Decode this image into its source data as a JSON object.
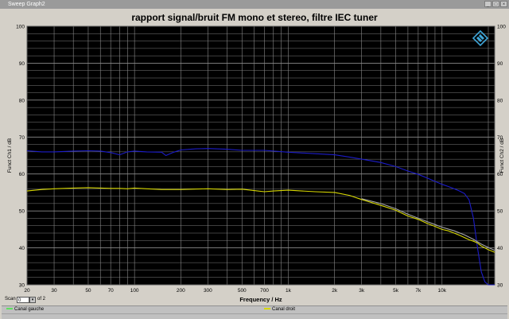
{
  "window": {
    "title": "Sweep Graph2",
    "buttons": [
      "_",
      "□",
      "×"
    ]
  },
  "chart_data": {
    "type": "line",
    "title": "rapport signal/bruit FM mono et stereo,  filtre IEC tuner",
    "xlabel": "Frequency / Hz",
    "ylabel_left": "Funct Ch1 / dB",
    "ylabel_right": "Funct Ch2 / dB",
    "xscale": "log",
    "xlim": [
      20,
      22000
    ],
    "ylim": [
      30,
      100
    ],
    "grid": true,
    "background": "#000000",
    "grid_color": "#8a8a8a",
    "yticks": [
      "30",
      "40",
      "50",
      "60",
      "70",
      "80",
      "90",
      "100"
    ],
    "xticks": [
      {
        "v": 20,
        "label": "20"
      },
      {
        "v": 30,
        "label": "30"
      },
      {
        "v": 50,
        "label": "50"
      },
      {
        "v": 70,
        "label": "70"
      },
      {
        "v": 100,
        "label": "100"
      },
      {
        "v": 200,
        "label": "200"
      },
      {
        "v": 300,
        "label": "300"
      },
      {
        "v": 500,
        "label": "500"
      },
      {
        "v": 700,
        "label": "700"
      },
      {
        "v": 1000,
        "label": "1k"
      },
      {
        "v": 2000,
        "label": "2k"
      },
      {
        "v": 3000,
        "label": "3k"
      },
      {
        "v": 5000,
        "label": "5k"
      },
      {
        "v": 7000,
        "label": "7k"
      },
      {
        "v": 10000,
        "label": "10k"
      }
    ],
    "series": [
      {
        "color": "#1c1cc8",
        "x": [
          20,
          25,
          30,
          40,
          50,
          60,
          70,
          80,
          90,
          100,
          120,
          150,
          160,
          180,
          200,
          250,
          300,
          400,
          500,
          700,
          1000,
          1500,
          2000,
          2500,
          3000,
          4000,
          5000,
          6000,
          7000,
          8000,
          9000,
          10000,
          11000,
          12000,
          13000,
          14000,
          15000,
          16000,
          17000,
          18000,
          19000,
          20000,
          22000
        ],
        "y": [
          66.3,
          66.0,
          66.0,
          66.2,
          66.3,
          66.2,
          65.8,
          65.2,
          66.0,
          66.2,
          66.0,
          65.9,
          65.0,
          65.9,
          66.5,
          66.8,
          66.9,
          66.7,
          66.4,
          66.4,
          65.9,
          65.5,
          65.2,
          64.6,
          64.0,
          63.1,
          62.0,
          60.8,
          59.9,
          58.9,
          58.0,
          57.2,
          56.6,
          56.0,
          55.4,
          54.7,
          53.0,
          48.0,
          40.0,
          33.5,
          30.8,
          30.0,
          30.0
        ]
      },
      {
        "color": "#d8d800",
        "x": [
          20,
          25,
          30,
          40,
          50,
          60,
          70,
          80,
          90,
          100,
          120,
          150,
          200,
          300,
          400,
          500,
          600,
          700,
          800,
          1000,
          1500,
          2000,
          2500,
          3000,
          4000,
          5000,
          6000,
          7000,
          8000,
          9000,
          10000,
          11000,
          12000,
          13000,
          14000,
          15000,
          16000,
          17000,
          18000,
          19000,
          20000,
          22000
        ],
        "y": [
          55.4,
          55.8,
          56.0,
          56.2,
          56.3,
          56.2,
          56.1,
          56.1,
          56.0,
          56.2,
          56.0,
          55.8,
          55.8,
          56.0,
          55.8,
          55.9,
          55.5,
          55.2,
          55.4,
          55.6,
          55.2,
          55.0,
          54.2,
          53.1,
          51.5,
          50.2,
          48.6,
          47.7,
          46.6,
          45.8,
          45.0,
          44.6,
          44.0,
          43.4,
          42.8,
          42.2,
          41.8,
          41.3,
          40.5,
          40.0,
          39.5,
          38.8
        ]
      },
      {
        "color": "#a8a8a8",
        "x": [
          3000,
          4000,
          5000,
          6000,
          7000,
          8000,
          9000,
          10000,
          12000,
          14000,
          16000,
          18000,
          20000,
          22000
        ],
        "y": [
          53.3,
          52.0,
          50.6,
          49.1,
          48.0,
          47.1,
          46.3,
          45.6,
          44.6,
          43.5,
          42.3,
          41.0,
          40.1,
          39.3
        ]
      }
    ]
  },
  "scan": {
    "label": "Scan",
    "value": "0",
    "of_text": "of 2"
  },
  "legend": [
    {
      "name": "Canal gauche",
      "color": "#60e060"
    },
    {
      "name": "Canal droit",
      "color": "#d8d800"
    }
  ],
  "colors": {
    "logo": "#3fa6d8"
  }
}
